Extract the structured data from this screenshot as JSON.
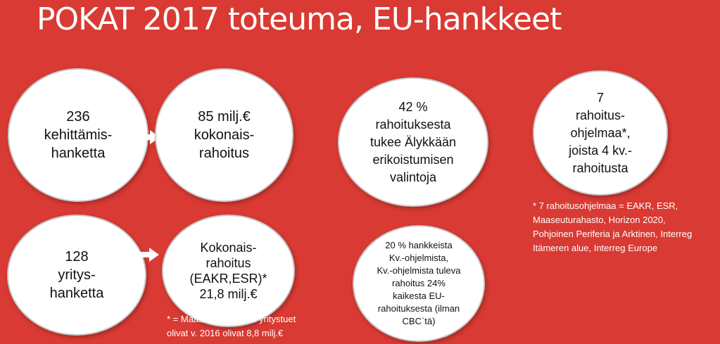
{
  "title": "POKAT 2017 toteuma, EU-hankkeet",
  "circles": {
    "c1": "236\nkehittämis-\nhanketta",
    "c2": "85 milj.€\nkokonais-\nrahoitus",
    "c3": "128\nyritys-\nhanketta",
    "c4": "Kokonais-\nrahoitus\n(EAKR,ESR)*\n21,8 milj.€",
    "c5": "42 %\nrahoituksesta\ntukee Älykkään\nerikoistumisen\nvalintoja",
    "c6": "7\nrahoitus-\nohjelmaa*,\njoista 4 kv.-\nrahoitusta",
    "c7": "20 % hankkeista\nKv.-ohjelmista,\nKv.-ohjelmista tuleva\nrahoitus 24%\nkaikesta EU-\nrahoituksesta (ilman\nCBC`tä)"
  },
  "notes": {
    "programs": "* 7 rahoitusohjelmaa = EAKR, ESR,\nMaaseuturahasto, Horizon 2020,\nPohjoinen Periferia ja Arktinen, Interreg\nItämeren alue, Interreg Europe",
    "rural": "* = Maaseuturahaston yritystuet\nolivat v. 2016 olivat 8,8 milj.€"
  },
  "icons": {
    "arrow": "arrow-right-icon"
  },
  "colors": {
    "background": "#d93a33",
    "circle": "#ffffff"
  }
}
